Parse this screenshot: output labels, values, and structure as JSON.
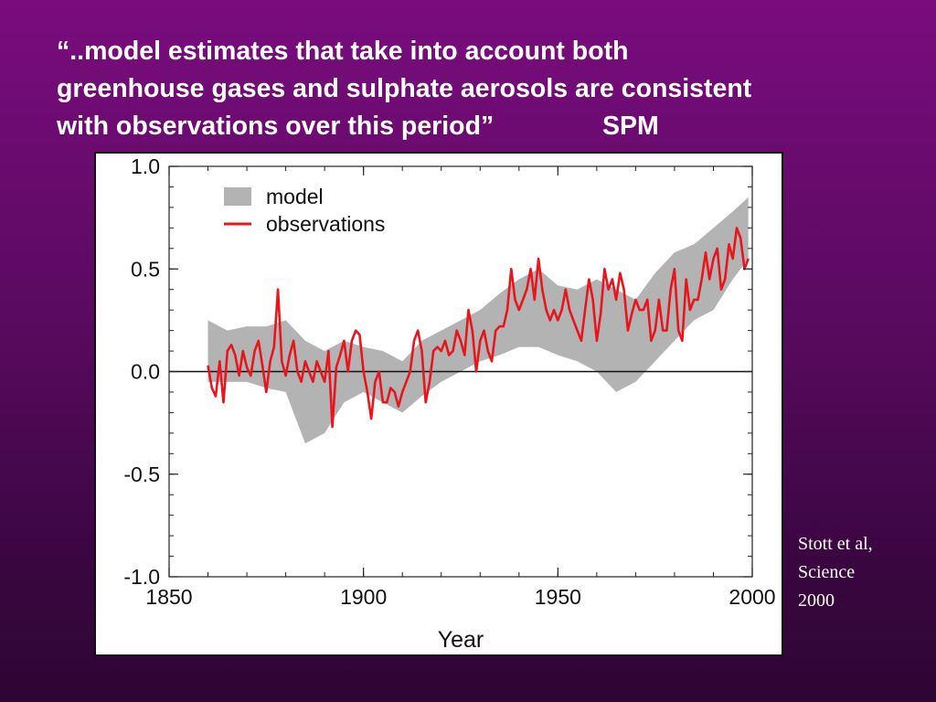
{
  "slide": {
    "title_lines": [
      "“..model estimates that take into account both",
      "greenhouse gases and sulphate aerosols are consistent",
      "with observations over this period”               SPM"
    ],
    "citation_lines": [
      "Stott et al,",
      "Science",
      "2000"
    ]
  },
  "colors": {
    "model_band": "#b3b3b3",
    "observations": "#e8161c",
    "background": "#6e0b72"
  },
  "chart_data": {
    "type": "area",
    "title": "",
    "xlabel": "Year",
    "ylabel": "",
    "xlim": [
      1850,
      2000
    ],
    "ylim": [
      -1.0,
      1.0
    ],
    "xticks": [
      1850,
      1900,
      1950,
      2000
    ],
    "xtick_labels": [
      "1850",
      "1900",
      "1950",
      "2000"
    ],
    "yticks": [
      1.0,
      0.5,
      0.0,
      -0.5,
      -1.0
    ],
    "ytick_labels": [
      "1.0",
      "0.5",
      "0.0",
      "-0.5",
      "-1.0"
    ],
    "grid": false,
    "zero_line": true,
    "legend": {
      "placement": "top-left",
      "entries": [
        {
          "name": "model",
          "kind": "band"
        },
        {
          "name": "observations",
          "kind": "line"
        }
      ]
    },
    "series": [
      {
        "name": "model",
        "kind": "band",
        "x": [
          1860,
          1865,
          1870,
          1875,
          1880,
          1885,
          1890,
          1895,
          1900,
          1905,
          1910,
          1915,
          1920,
          1925,
          1930,
          1935,
          1940,
          1945,
          1950,
          1955,
          1960,
          1965,
          1970,
          1975,
          1980,
          1985,
          1990,
          1995,
          1999
        ],
        "lower": [
          -0.05,
          -0.05,
          -0.05,
          -0.08,
          -0.1,
          -0.35,
          -0.3,
          -0.15,
          -0.1,
          -0.15,
          -0.2,
          -0.12,
          -0.05,
          0.0,
          0.05,
          0.08,
          0.12,
          0.12,
          0.08,
          0.05,
          0.0,
          -0.1,
          -0.05,
          0.05,
          0.15,
          0.25,
          0.3,
          0.45,
          0.55
        ],
        "upper": [
          0.25,
          0.2,
          0.22,
          0.22,
          0.25,
          0.15,
          0.1,
          0.15,
          0.12,
          0.1,
          0.05,
          0.15,
          0.2,
          0.25,
          0.3,
          0.38,
          0.45,
          0.5,
          0.42,
          0.4,
          0.45,
          0.4,
          0.35,
          0.48,
          0.58,
          0.62,
          0.7,
          0.78,
          0.85
        ]
      },
      {
        "name": "observations",
        "kind": "line",
        "x": [
          1860,
          1861,
          1862,
          1863,
          1864,
          1865,
          1866,
          1867,
          1868,
          1869,
          1870,
          1871,
          1872,
          1873,
          1874,
          1875,
          1876,
          1877,
          1878,
          1879,
          1880,
          1881,
          1882,
          1883,
          1884,
          1885,
          1886,
          1887,
          1888,
          1889,
          1890,
          1891,
          1892,
          1893,
          1894,
          1895,
          1896,
          1897,
          1898,
          1899,
          1900,
          1901,
          1902,
          1903,
          1904,
          1905,
          1906,
          1907,
          1908,
          1909,
          1910,
          1911,
          1912,
          1913,
          1914,
          1915,
          1916,
          1917,
          1918,
          1919,
          1920,
          1921,
          1922,
          1923,
          1924,
          1925,
          1926,
          1927,
          1928,
          1929,
          1930,
          1931,
          1932,
          1933,
          1934,
          1935,
          1936,
          1937,
          1938,
          1939,
          1940,
          1941,
          1942,
          1943,
          1944,
          1945,
          1946,
          1947,
          1948,
          1949,
          1950,
          1951,
          1952,
          1953,
          1954,
          1955,
          1956,
          1957,
          1958,
          1959,
          1960,
          1961,
          1962,
          1963,
          1964,
          1965,
          1966,
          1967,
          1968,
          1969,
          1970,
          1971,
          1972,
          1973,
          1974,
          1975,
          1976,
          1977,
          1978,
          1979,
          1980,
          1981,
          1982,
          1983,
          1984,
          1985,
          1986,
          1987,
          1988,
          1989,
          1990,
          1991,
          1992,
          1993,
          1994,
          1995,
          1996,
          1997,
          1998,
          1999
        ],
        "y": [
          0.03,
          -0.08,
          -0.12,
          0.05,
          -0.15,
          0.1,
          0.13,
          0.08,
          -0.02,
          0.1,
          0.02,
          -0.02,
          0.1,
          0.15,
          0.03,
          -0.1,
          0.05,
          0.12,
          0.4,
          0.05,
          -0.02,
          0.08,
          0.15,
          0.0,
          -0.05,
          0.05,
          0.0,
          -0.05,
          0.05,
          0.0,
          -0.05,
          0.1,
          -0.27,
          0.02,
          0.08,
          0.15,
          0.0,
          0.15,
          0.2,
          0.18,
          0.0,
          -0.1,
          -0.23,
          -0.05,
          0.0,
          -0.15,
          -0.15,
          -0.08,
          -0.1,
          -0.17,
          -0.1,
          -0.05,
          0.0,
          0.15,
          0.2,
          0.1,
          -0.15,
          -0.05,
          0.1,
          0.12,
          0.1,
          0.15,
          0.08,
          0.1,
          0.2,
          0.15,
          0.08,
          0.3,
          0.2,
          0.0,
          0.15,
          0.2,
          0.1,
          0.05,
          0.2,
          0.22,
          0.22,
          0.3,
          0.5,
          0.35,
          0.3,
          0.35,
          0.4,
          0.5,
          0.35,
          0.55,
          0.4,
          0.3,
          0.25,
          0.3,
          0.25,
          0.3,
          0.4,
          0.3,
          0.25,
          0.2,
          0.15,
          0.3,
          0.45,
          0.35,
          0.15,
          0.28,
          0.5,
          0.4,
          0.45,
          0.35,
          0.48,
          0.4,
          0.2,
          0.28,
          0.35,
          0.3,
          0.3,
          0.35,
          0.15,
          0.2,
          0.35,
          0.2,
          0.2,
          0.4,
          0.5,
          0.2,
          0.15,
          0.45,
          0.3,
          0.35,
          0.35,
          0.45,
          0.58,
          0.45,
          0.55,
          0.6,
          0.4,
          0.45,
          0.62,
          0.55,
          0.7,
          0.65,
          0.5,
          0.55
        ]
      }
    ]
  }
}
